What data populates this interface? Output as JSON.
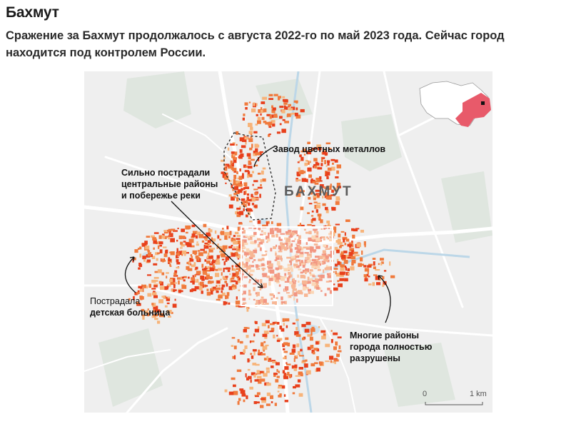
{
  "header": {
    "title": "Бахмут",
    "subtitle": "Сражение за Бахмут продолжалось с августа 2022-го по май 2023 года. Сейчас город находится под контролем России."
  },
  "map": {
    "city_label": "БАХМУТ",
    "annotations": {
      "plant": "Завод цветных металлов",
      "center_line1": "Сильно пострадали",
      "center_line2": "центральные районы",
      "center_line3": "и побережье реки",
      "hospital_line1": "Пострадала",
      "hospital_line2": "детская больница",
      "districts_line1": "Многие районы",
      "districts_line2": "города полностью",
      "districts_line3": "разрушены"
    },
    "scale": {
      "start": "0",
      "end": "1 km"
    },
    "colors": {
      "background": "#efefef",
      "roads": "#ffffff",
      "river": "#cfe3ef",
      "green": "#dfe6df",
      "damage_heavy": "#e8401c",
      "damage_medium": "#f07a3c",
      "damage_light": "#f7b47a",
      "inset_highlight": "#e85a6a"
    }
  }
}
